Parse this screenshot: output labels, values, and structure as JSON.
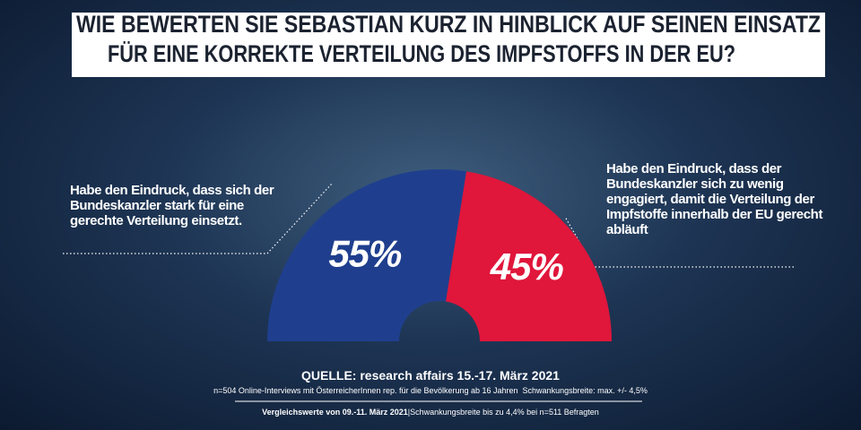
{
  "chart_data": {
    "type": "pie",
    "shape": "half-donut",
    "title": [
      "WIE BEWERTEN SIE SEBASTIAN KURZ IN HINBLICK AUF SEINEN EINSATZ",
      "FÜR EINE KORREKTE VERTEILUNG DES IMPFSTOFFS IN DER EU?"
    ],
    "categories": [
      "Habe den Eindruck, dass sich der Bundeskanzler stark für eine gerechte Verteilung einsetzt.",
      "Habe den Eindruck, dass der Bundeskanzler sich zu wenig engagiert, damit die Verteilung der Impfstoffe innerhalb der EU gerecht abläuft"
    ],
    "values": [
      55,
      45
    ],
    "value_labels": [
      "55%",
      "45%"
    ],
    "colors": [
      "#1f3f8e",
      "#e0163b"
    ],
    "source": "QUELLE: research affairs 15.-17. März 2021",
    "notes": [
      "n=504 Online-Interviews mit ÖsterreicherInnen rep. für die Bevölkerung ab 16 Jahren  Schwankungsbreite: max. +/- 4,5%",
      "Vergleichswerte von 09.-11. März 2021",
      "Schwankungsbreite bis zu 4,4% bei n=511 Befragten"
    ]
  }
}
